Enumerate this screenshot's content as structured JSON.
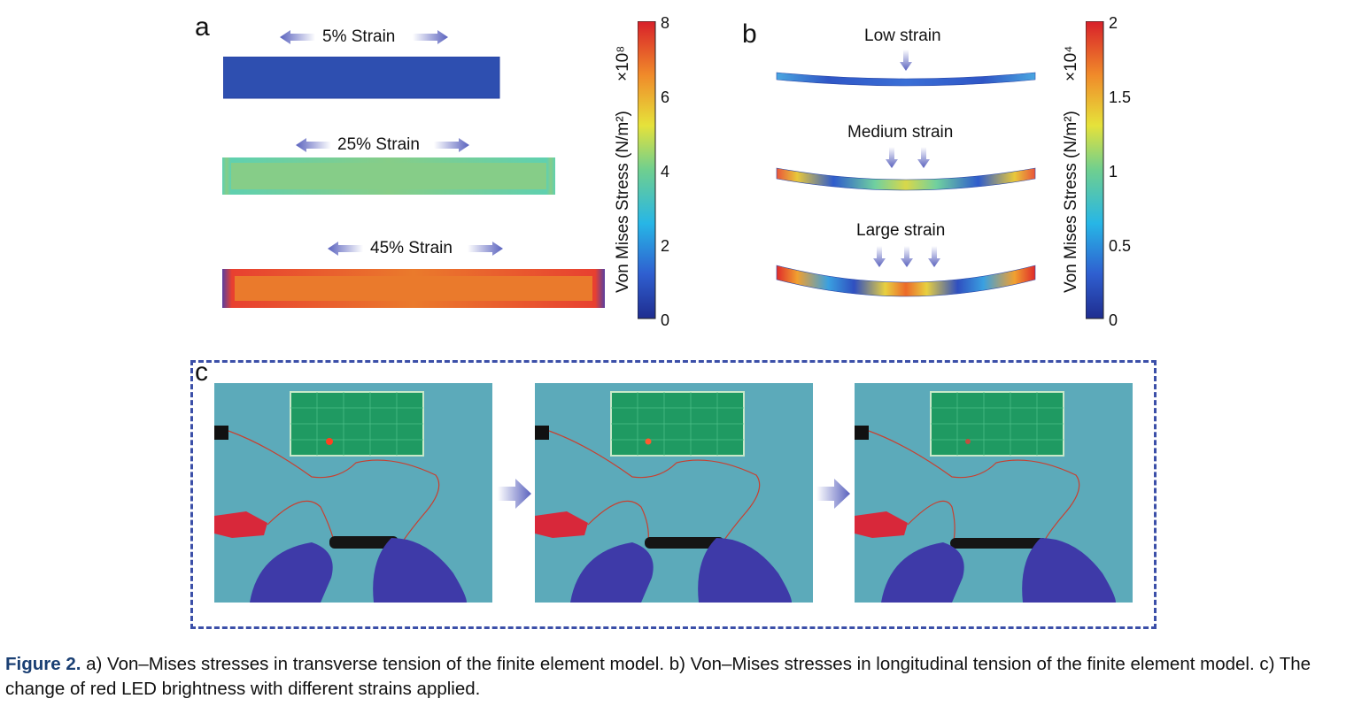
{
  "panels": {
    "a": {
      "letter": "a",
      "labels": [
        "5% Strain",
        "25% Strain",
        "45% Strain"
      ],
      "colorbar": {
        "title": "Von Mises Stress (N/m²)",
        "multiplier": "×10⁸",
        "ticks": [
          "8",
          "6",
          "4",
          "2",
          "0"
        ]
      }
    },
    "b": {
      "letter": "b",
      "labels": [
        "Low strain",
        "Medium strain",
        "Large strain"
      ],
      "colorbar": {
        "title": "Von Mises Stress (N/m²)",
        "multiplier": "×10⁴",
        "ticks": [
          "2",
          "1.5",
          "1",
          "0.5",
          "0"
        ]
      }
    },
    "c": {
      "letter": "c"
    }
  },
  "caption": {
    "label": "Figure 2.",
    "text": " a) Von–Mises stresses in transverse tension of the finite element model. b) Von–Mises stresses in longitudinal tension of the finite element model. c) The change of red LED brightness with different strains applied."
  },
  "colors": {
    "jet_low": "#2b3fa3",
    "jet_mid": "#7ccc8a",
    "jet_high": "#e8622a",
    "arrow": "#6a70c4",
    "dash": "#3b4fa8",
    "caption_label": "#1a3f73"
  }
}
